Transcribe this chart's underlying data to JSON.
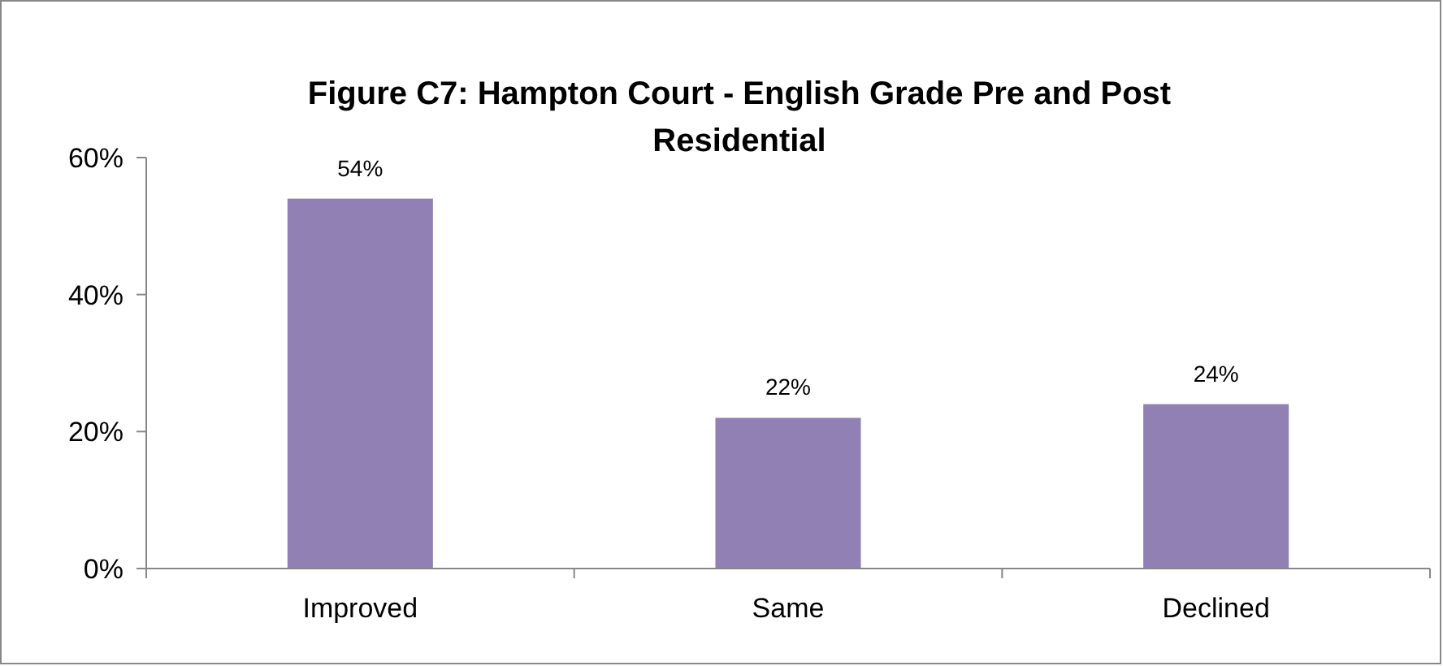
{
  "chart_data": {
    "type": "bar",
    "title": "Figure C7: Hampton Court - English Grade Pre and Post Residential",
    "categories": [
      "Improved",
      "Same",
      "Declined"
    ],
    "values": [
      54,
      22,
      24
    ],
    "color": "#9180b4",
    "value_labels": [
      "54%",
      "22%",
      "24%"
    ],
    "ylim": [
      0,
      60
    ],
    "yticks": [
      {
        "value": 0,
        "label": "0%"
      },
      {
        "value": 20,
        "label": "20%"
      },
      {
        "value": 40,
        "label": "40%"
      },
      {
        "value": 60,
        "label": "60%"
      }
    ],
    "grid": false
  }
}
